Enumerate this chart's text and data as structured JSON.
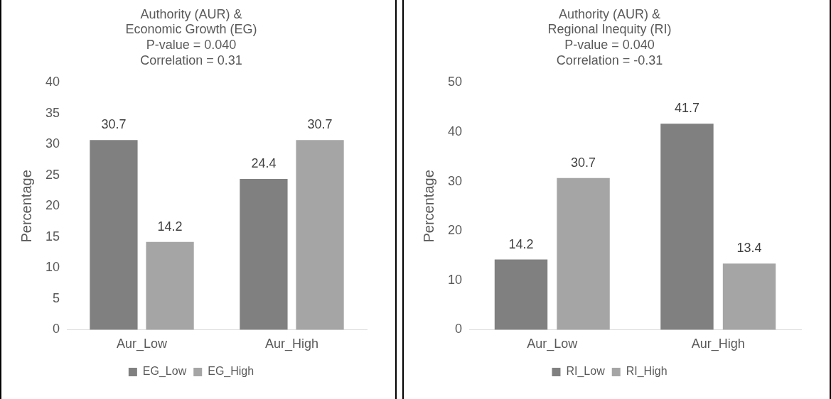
{
  "chart_data": [
    {
      "type": "bar",
      "title": "Authority (AUR) &\nEconomic Growth (EG)\nP-value = 0.040\nCorrelation = 0.31",
      "ylabel": "Percentage",
      "categories": [
        "Aur_Low",
        "Aur_High"
      ],
      "series": [
        {
          "name": "EG_Low",
          "color": "#808080",
          "values": [
            30.7,
            24.4
          ]
        },
        {
          "name": "EG_High",
          "color": "#a5a5a5",
          "values": [
            14.2,
            30.7
          ]
        }
      ],
      "ylim": [
        0,
        40
      ],
      "yticks": [
        0,
        5,
        10,
        15,
        20,
        25,
        30,
        35,
        40
      ],
      "grid": false,
      "legend": "bottom",
      "data_labels": true
    },
    {
      "type": "bar",
      "title": "Authority (AUR) &\nRegional Inequity (RI)\nP-value = 0.040\nCorrelation = -0.31",
      "ylabel": "Percentage",
      "categories": [
        "Aur_Low",
        "Aur_High"
      ],
      "series": [
        {
          "name": "RI_Low",
          "color": "#808080",
          "values": [
            14.2,
            41.7
          ]
        },
        {
          "name": "RI_High",
          "color": "#a5a5a5",
          "values": [
            30.7,
            13.4
          ]
        }
      ],
      "ylim": [
        0,
        50
      ],
      "yticks": [
        0,
        10,
        20,
        30,
        40,
        50
      ],
      "grid": false,
      "legend": "bottom",
      "data_labels": true
    }
  ]
}
